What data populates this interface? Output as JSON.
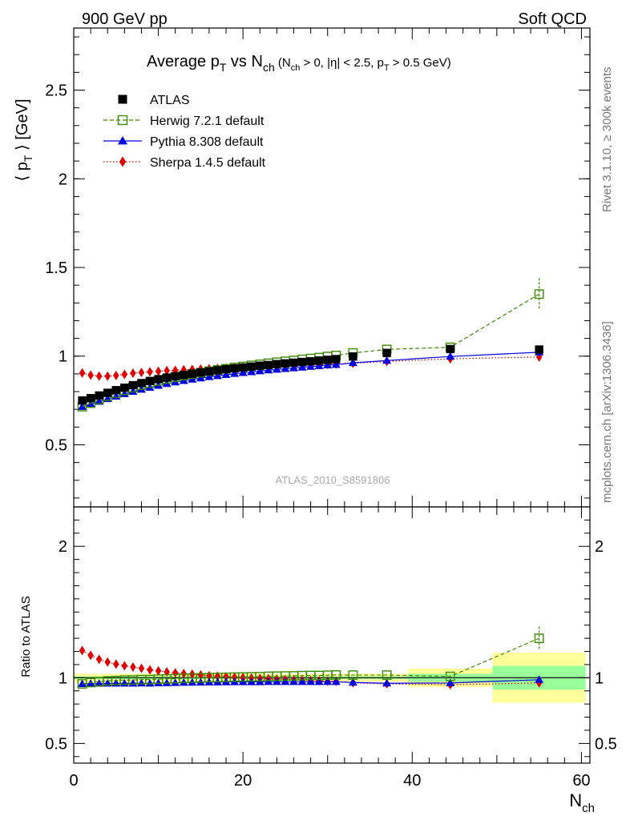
{
  "header": {
    "left": "900 GeV pp",
    "right": "Soft QCD"
  },
  "side_labels": {
    "rivet": "Rivet 3.1.10, ≥ 300k events",
    "mcplots": "mcplots.cern.ch [arXiv:1306.3436]"
  },
  "chart_data": [
    {
      "type": "scatter",
      "panel": "main",
      "title_parts": {
        "prefix": "Average p",
        "sub_t": "T",
        "mid": " vs N",
        "sub_ch": "ch",
        "cond_open": " (N",
        "cond_sub_ch": "ch",
        "cond_eta": " > 0, |η| < 2.5, p",
        "cond_sub_t": "T",
        "cond_close": " > 0.5 GeV)"
      },
      "ylabel_parts": {
        "open": "⟨ p",
        "sub": "T",
        "close": " ⟩ [GeV]"
      },
      "xlabel_parts": {
        "main": "N",
        "sub": "ch"
      },
      "watermark": "ATLAS_2010_S8591806",
      "xlim": [
        0,
        61
      ],
      "ylim": [
        0.15,
        2.85
      ],
      "yticks": [
        0.5,
        1,
        1.5,
        2,
        2.5
      ],
      "ytick_labels": [
        "0.5",
        "1",
        "1.5",
        "2",
        "2.5"
      ],
      "xticks": [
        0,
        20,
        40,
        60
      ],
      "xtick_labels": [
        "0",
        "20",
        "40",
        "60"
      ],
      "legend_position": "top-left",
      "series": [
        {
          "name": "ATLAS",
          "color": "#000000",
          "marker": "square-filled",
          "line": "none",
          "x": [
            1,
            2,
            3,
            4,
            5,
            6,
            7,
            8,
            9,
            10,
            11,
            12,
            13,
            14,
            15,
            16,
            17,
            18,
            19,
            20,
            21,
            22,
            23,
            24,
            25,
            26,
            27,
            28,
            29,
            30,
            31,
            33,
            37,
            44.5,
            55
          ],
          "y": [
            0.75,
            0.763,
            0.778,
            0.793,
            0.808,
            0.822,
            0.836,
            0.848,
            0.86,
            0.87,
            0.879,
            0.887,
            0.894,
            0.901,
            0.908,
            0.914,
            0.92,
            0.926,
            0.931,
            0.936,
            0.941,
            0.946,
            0.95,
            0.955,
            0.959,
            0.963,
            0.967,
            0.971,
            0.975,
            0.979,
            0.983,
            0.998,
            1.018,
            1.04,
            1.037
          ]
        },
        {
          "name": "Herwig 7.2.1 default",
          "color": "#3a8a00",
          "marker": "square-open",
          "line": "dashed",
          "x": [
            1,
            2,
            3,
            4,
            5,
            6,
            7,
            8,
            9,
            10,
            11,
            12,
            13,
            14,
            15,
            16,
            17,
            18,
            19,
            20,
            21,
            22,
            23,
            24,
            25,
            26,
            27,
            28,
            29,
            30,
            31,
            33,
            37,
            44.5,
            55
          ],
          "y": [
            0.715,
            0.735,
            0.755,
            0.774,
            0.791,
            0.807,
            0.822,
            0.836,
            0.848,
            0.86,
            0.871,
            0.881,
            0.89,
            0.899,
            0.907,
            0.915,
            0.922,
            0.929,
            0.936,
            0.942,
            0.948,
            0.954,
            0.96,
            0.966,
            0.971,
            0.976,
            0.982,
            0.987,
            0.992,
            0.998,
            1.004,
            1.018,
            1.038,
            1.05,
            1.35
          ],
          "yerr_last": 0.09
        },
        {
          "name": "Pythia 8.308 default",
          "color": "#0000dd",
          "marker": "triangle",
          "line": "solid",
          "x": [
            1,
            2,
            3,
            4,
            5,
            6,
            7,
            8,
            9,
            10,
            11,
            12,
            13,
            14,
            15,
            16,
            17,
            18,
            19,
            20,
            21,
            22,
            23,
            24,
            25,
            26,
            27,
            28,
            29,
            30,
            31,
            33,
            37,
            44.5,
            55
          ],
          "y": [
            0.715,
            0.729,
            0.744,
            0.759,
            0.773,
            0.787,
            0.8,
            0.812,
            0.823,
            0.834,
            0.844,
            0.853,
            0.861,
            0.869,
            0.876,
            0.883,
            0.889,
            0.895,
            0.901,
            0.906,
            0.911,
            0.916,
            0.921,
            0.925,
            0.929,
            0.933,
            0.937,
            0.941,
            0.945,
            0.949,
            0.952,
            0.962,
            0.975,
            0.998,
            1.022
          ]
        },
        {
          "name": "Sherpa 1.4.5 default",
          "color": "#dd0000",
          "marker": "diamond",
          "line": "dotted",
          "x": [
            1,
            2,
            3,
            4,
            5,
            6,
            7,
            8,
            9,
            10,
            11,
            12,
            13,
            14,
            15,
            16,
            17,
            18,
            19,
            20,
            21,
            22,
            23,
            24,
            25,
            26,
            27,
            28,
            29,
            30,
            31,
            33,
            37,
            44.5,
            55
          ],
          "y": [
            0.905,
            0.893,
            0.887,
            0.887,
            0.891,
            0.897,
            0.904,
            0.908,
            0.912,
            0.915,
            0.918,
            0.92,
            0.923,
            0.925,
            0.927,
            0.929,
            0.931,
            0.933,
            0.935,
            0.937,
            0.939,
            0.941,
            0.943,
            0.944,
            0.946,
            0.947,
            0.949,
            0.95,
            0.952,
            0.953,
            0.955,
            0.96,
            0.97,
            0.985,
            0.995
          ]
        }
      ]
    },
    {
      "type": "scatter",
      "panel": "ratio",
      "ylabel": "Ratio to ATLAS",
      "xlim": [
        0,
        61
      ],
      "ylim": [
        0.35,
        2.3
      ],
      "yticks": [
        0.5,
        1,
        2
      ],
      "ytick_labels": [
        "0.5",
        "1",
        "2"
      ],
      "xticks": [
        0,
        20,
        40,
        60
      ],
      "xtick_labels": [
        "0",
        "20",
        "40",
        "60"
      ],
      "reference_line": 1,
      "uncertainty_bands": [
        {
          "x0": 0,
          "x1": 39.5,
          "stat_lo": 0.99,
          "stat_hi": 1.01,
          "total_lo": 0.97,
          "total_hi": 1.03
        },
        {
          "x0": 39.5,
          "x1": 49.5,
          "stat_lo": 0.97,
          "stat_hi": 1.03,
          "total_lo": 0.93,
          "total_hi": 1.07
        },
        {
          "x0": 49.5,
          "x1": 60.5,
          "stat_lo": 0.91,
          "stat_hi": 1.09,
          "total_lo": 0.81,
          "total_hi": 1.19
        }
      ],
      "series": [
        {
          "name": "Herwig 7.2.1 default",
          "color": "#3a8a00",
          "marker": "square-open",
          "line": "dashed",
          "x": [
            1,
            2,
            3,
            4,
            5,
            6,
            7,
            8,
            9,
            10,
            11,
            12,
            13,
            14,
            15,
            16,
            17,
            18,
            19,
            20,
            21,
            22,
            23,
            24,
            25,
            26,
            27,
            28,
            29,
            30,
            31,
            33,
            37,
            44.5,
            55
          ],
          "y": [
            0.953,
            0.963,
            0.97,
            0.976,
            0.979,
            0.982,
            0.983,
            0.986,
            0.986,
            0.989,
            0.991,
            0.993,
            0.996,
            0.998,
            0.999,
            1.001,
            1.002,
            1.003,
            1.005,
            1.006,
            1.007,
            1.008,
            1.011,
            1.012,
            1.013,
            1.014,
            1.016,
            1.017,
            1.017,
            1.019,
            1.021,
            1.02,
            1.02,
            1.01,
            1.3
          ],
          "yerr_last": 0.09
        },
        {
          "name": "Pythia 8.308 default",
          "color": "#0000dd",
          "marker": "triangle",
          "line": "solid",
          "x": [
            1,
            2,
            3,
            4,
            5,
            6,
            7,
            8,
            9,
            10,
            11,
            12,
            13,
            14,
            15,
            16,
            17,
            18,
            19,
            20,
            21,
            22,
            23,
            24,
            25,
            26,
            27,
            28,
            29,
            30,
            31,
            33,
            37,
            44.5,
            55
          ],
          "y": [
            0.953,
            0.955,
            0.956,
            0.957,
            0.957,
            0.957,
            0.957,
            0.958,
            0.957,
            0.959,
            0.96,
            0.962,
            0.963,
            0.964,
            0.965,
            0.966,
            0.966,
            0.967,
            0.968,
            0.968,
            0.968,
            0.968,
            0.969,
            0.969,
            0.969,
            0.969,
            0.969,
            0.969,
            0.969,
            0.969,
            0.969,
            0.964,
            0.958,
            0.96,
            0.985
          ]
        },
        {
          "name": "Sherpa 1.4.5 default",
          "color": "#dd0000",
          "marker": "diamond",
          "line": "dotted",
          "x": [
            1,
            2,
            3,
            4,
            5,
            6,
            7,
            8,
            9,
            10,
            11,
            12,
            13,
            14,
            15,
            16,
            17,
            18,
            19,
            20,
            21,
            22,
            23,
            24,
            25,
            26,
            27,
            28,
            29,
            30,
            31,
            33,
            37,
            44.5,
            55
          ],
          "y": [
            1.207,
            1.17,
            1.14,
            1.119,
            1.103,
            1.091,
            1.081,
            1.071,
            1.06,
            1.052,
            1.044,
            1.037,
            1.032,
            1.027,
            1.021,
            1.016,
            1.012,
            1.008,
            1.004,
            1.001,
            0.998,
            0.995,
            0.993,
            0.989,
            0.986,
            0.984,
            0.981,
            0.979,
            0.977,
            0.974,
            0.972,
            0.962,
            0.953,
            0.947,
            0.96
          ]
        }
      ]
    }
  ]
}
